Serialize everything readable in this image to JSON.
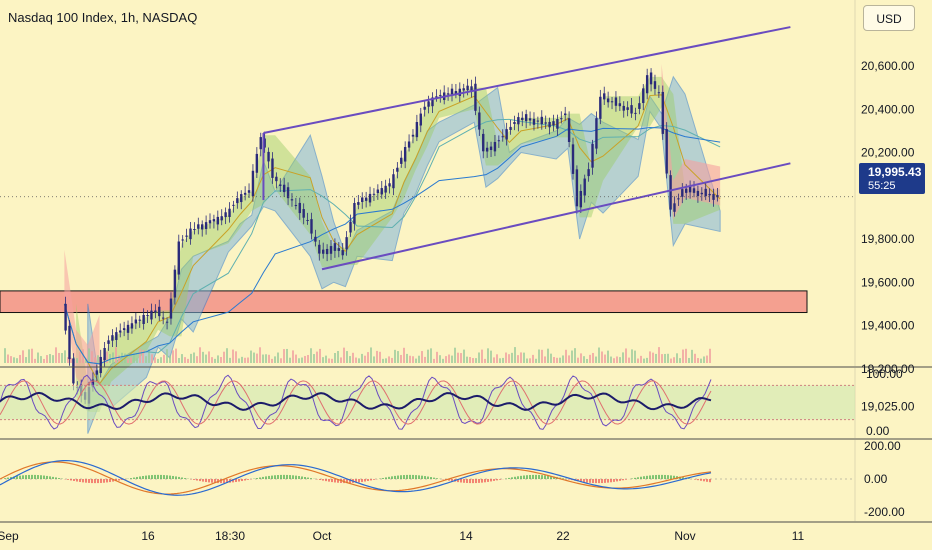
{
  "header": {
    "title": "Nasdaq 100 Index, 1h, NASDAQ",
    "currency_button": "USD"
  },
  "price_badge": {
    "price": "19,995.43",
    "countdown": "55:25"
  },
  "colors": {
    "background": "#fcf4c3",
    "channel": "#6a4cc0",
    "candle": "#2a2a7a",
    "zone": "#f4a090",
    "cloud_blue": "#7fb5dc",
    "cloud_green": "#9ccc65",
    "cloud_red": "#f5a0a0",
    "badge": "#1e3a8a"
  },
  "chart_data": [
    {
      "type": "candlestick",
      "title": "Nasdaq 100 Index, 1h, NASDAQ",
      "x_ticks": [
        "Sep",
        "16",
        "18:30",
        "Oct",
        "14",
        "22",
        "Nov",
        "11"
      ],
      "y_ticks": [
        "20,600.00",
        "20,400.00",
        "20,200.00",
        "19,800.00",
        "19,600.00",
        "19,400.00",
        "19,200.00",
        "19,025.00"
      ],
      "ylim": [
        18950,
        20800
      ],
      "last_price": 19995.43,
      "price_path": [
        [
          "Sep 09",
          19500
        ],
        [
          "Sep 10",
          19130
        ],
        [
          "Sep 11",
          19060
        ],
        [
          "Sep 12",
          19200
        ],
        [
          "Sep 13",
          19340
        ],
        [
          "Sep 16",
          19440
        ],
        [
          "Sep 17",
          19470
        ],
        [
          "Sep 18",
          19410
        ],
        [
          "Sep 19",
          19780
        ],
        [
          "Sep 20",
          19840
        ],
        [
          "Sep 23",
          19910
        ],
        [
          "Sep 24",
          19990
        ],
        [
          "Sep 25",
          20020
        ],
        [
          "Sep 26",
          20280
        ],
        [
          "Sep 27",
          20090
        ],
        [
          "Sep 30",
          19880
        ],
        [
          "Oct 01",
          19730
        ],
        [
          "Oct 02",
          19760
        ],
        [
          "Oct 03",
          19740
        ],
        [
          "Oct 04",
          19960
        ],
        [
          "Oct 07",
          20050
        ],
        [
          "Oct 08",
          20180
        ],
        [
          "Oct 09",
          20290
        ],
        [
          "Oct 10",
          20420
        ],
        [
          "Oct 11",
          20460
        ],
        [
          "Oct 14",
          20500
        ],
        [
          "Oct 15",
          20200
        ],
        [
          "Oct 16",
          20240
        ],
        [
          "Oct 17",
          20300
        ],
        [
          "Oct 18",
          20360
        ],
        [
          "Oct 21",
          20330
        ],
        [
          "Oct 22",
          20380
        ],
        [
          "Oct 23",
          19960
        ],
        [
          "Oct 24",
          20130
        ],
        [
          "Oct 25",
          20460
        ],
        [
          "Oct 28",
          20380
        ],
        [
          "Oct 29",
          20550
        ],
        [
          "Oct 30",
          20470
        ],
        [
          "Oct 31",
          19930
        ],
        [
          "Nov 01",
          20030
        ],
        [
          "Nov 04",
          19995
        ]
      ],
      "channel": {
        "upper": [
          [
            "Sep 26",
            20290
          ],
          [
            "Nov 10",
            20780
          ]
        ],
        "lower": [
          [
            "Oct 01",
            19660
          ],
          [
            "Nov 10",
            20150
          ]
        ]
      },
      "zone": [
        19460,
        19560
      ],
      "volume": "histogram"
    },
    {
      "type": "line",
      "name": "stochastic RSI",
      "y_ticks": [
        "100.00",
        "0.00"
      ],
      "ylim": [
        0,
        100
      ],
      "bands": [
        80,
        20
      ]
    },
    {
      "type": "line",
      "name": "MACD",
      "y_ticks": [
        "200.00",
        "0.00",
        "-200.00"
      ],
      "ylim": [
        -250,
        250
      ]
    }
  ]
}
